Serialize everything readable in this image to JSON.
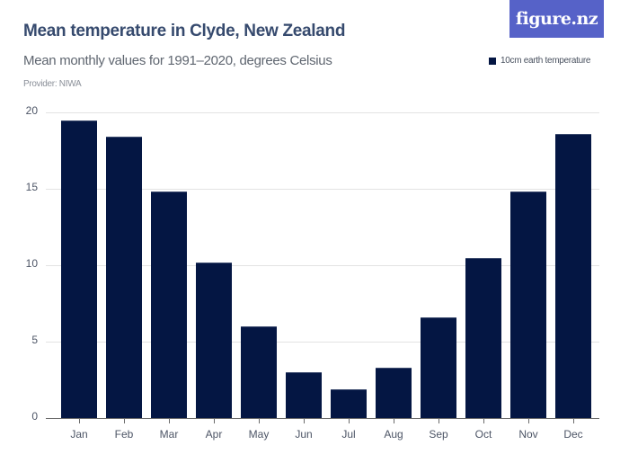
{
  "header": {
    "title": "Mean temperature in Clyde, New Zealand",
    "subtitle": "Mean monthly values for 1991–2020, degrees Celsius",
    "provider": "Provider: NIWA",
    "logo": "figure.nz"
  },
  "legend": {
    "items": [
      {
        "label": "10cm earth temperature",
        "color": "#041643"
      }
    ]
  },
  "chart_data": {
    "type": "bar",
    "title": "Mean temperature in Clyde, New Zealand",
    "subtitle": "Mean monthly values for 1991–2020, degrees Celsius",
    "xlabel": "",
    "ylabel": "",
    "categories": [
      "Jan",
      "Feb",
      "Mar",
      "Apr",
      "May",
      "Jun",
      "Jul",
      "Aug",
      "Sep",
      "Oct",
      "Nov",
      "Dec"
    ],
    "series": [
      {
        "name": "10cm earth temperature",
        "color": "#041643",
        "values": [
          19.5,
          18.4,
          14.8,
          10.2,
          6.0,
          3.0,
          1.9,
          3.3,
          6.6,
          10.5,
          14.8,
          18.6
        ]
      }
    ],
    "yticks": [
      "0",
      "5",
      "10",
      "15",
      "20"
    ],
    "ylim": [
      0,
      20
    ],
    "grid": true,
    "legend_position": "top-right"
  }
}
